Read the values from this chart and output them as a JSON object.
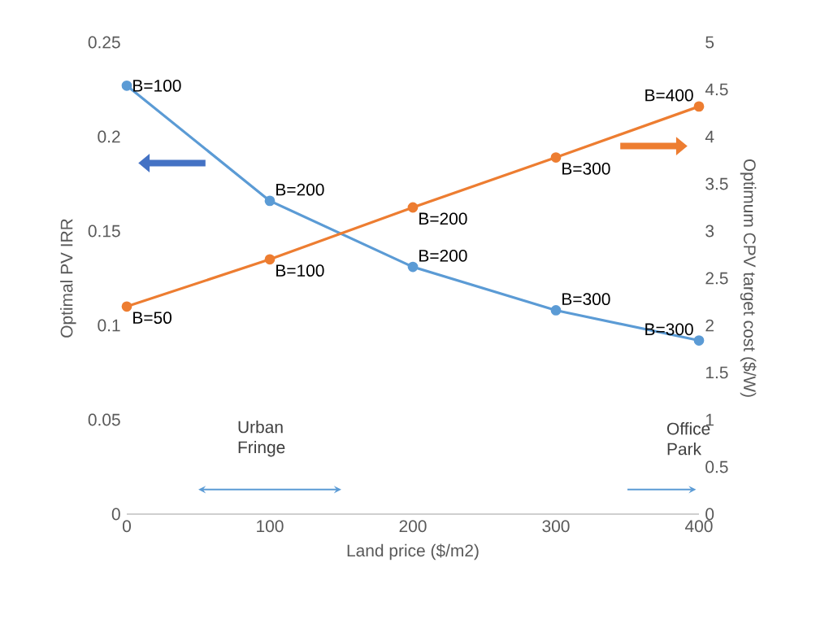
{
  "chart_data": {
    "type": "line",
    "xlabel": "Land price ($/m2)",
    "ylabel": "Optimal PV IRR",
    "y2label": "Optimum CPV target cost ($/W)",
    "x": [
      0,
      100,
      200,
      300,
      400
    ],
    "series": [
      {
        "color": "#5b9bd5",
        "values": [
          0.227,
          0.166,
          0.131,
          0.108,
          0.092
        ]
      },
      {
        "color": "#ed7d31",
        "axis": "y2",
        "values": [
          2.2,
          2.7,
          3.25,
          3.78,
          4.32
        ]
      }
    ],
    "xlim": [
      0,
      400
    ],
    "xticks": [
      0,
      100,
      200,
      300,
      400
    ],
    "ylim": [
      0,
      0.25
    ],
    "yticks": [
      0,
      0.05,
      0.1,
      0.15,
      0.2,
      0.25
    ],
    "y2lim": [
      0,
      5
    ],
    "y2ticks": [
      0,
      0.5,
      1,
      1.5,
      2,
      2.5,
      3,
      3.5,
      4,
      4.5,
      5
    ],
    "annotations": [
      {
        "text": "B=100",
        "x": 0,
        "y": 0.227
      },
      {
        "text": "B=200",
        "x": 100,
        "y": 0.166
      },
      {
        "text": "B=200",
        "x": 200,
        "y": 0.131
      },
      {
        "text": "B=300",
        "x": 300,
        "y": 0.108
      },
      {
        "text": "B=300",
        "x": 400,
        "y": 0.092
      },
      {
        "text": "B=50",
        "x": 0,
        "y": 0.11
      },
      {
        "text": "B=100",
        "x": 100,
        "y": 0.135
      },
      {
        "text": "B=200",
        "x": 200,
        "y": 0.1625
      },
      {
        "text": "B=300",
        "x": 300,
        "y": 0.189
      },
      {
        "text": "B=400",
        "x": 400,
        "y": 0.216
      },
      "Urban Fringe",
      "Office Park"
    ],
    "marker": "circle",
    "line_style": "solid",
    "grid": false
  }
}
